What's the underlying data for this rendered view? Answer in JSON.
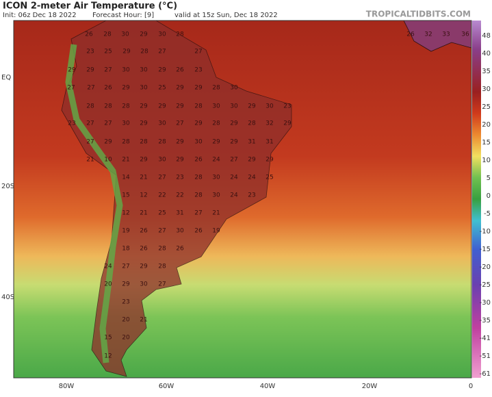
{
  "header": {
    "title": "ICON 2-meter Air Temperature (°C)",
    "init": "Init: 06z Dec 18 2022",
    "forecast_hour": "Forecast Hour: [9]",
    "valid": "valid at 15z Sun, Dec 18 2022",
    "watermark": "TROPICALTIDBITS.COM"
  },
  "axes": {
    "lat_labels": [
      "EQ",
      "20S",
      "40S"
    ],
    "lon_labels": [
      "80W",
      "60W",
      "40W",
      "20W",
      "0"
    ]
  },
  "colorbar": {
    "labels": [
      48,
      40,
      35,
      30,
      25,
      20,
      15,
      10,
      5,
      0,
      -5,
      -10,
      -15,
      -20,
      -25,
      -30,
      -35,
      -41,
      -51,
      -61
    ]
  },
  "map": {
    "labels": [
      26,
      28,
      30,
      29,
      30,
      28,
      23,
      25,
      29,
      28,
      27,
      27,
      29,
      29,
      27,
      30,
      30,
      29,
      26,
      23,
      27,
      27,
      26,
      29,
      30,
      25,
      29,
      29,
      28,
      30,
      28,
      28,
      28,
      29,
      29,
      29,
      28,
      30,
      30,
      29,
      30,
      23,
      23,
      27,
      27,
      30,
      29,
      30,
      27,
      29,
      28,
      29,
      28,
      32,
      29,
      27,
      29,
      28,
      28,
      28,
      29,
      30,
      29,
      29,
      31,
      31,
      21,
      10,
      21,
      29,
      30,
      29,
      26,
      24,
      27,
      29,
      29,
      14,
      21,
      27,
      23,
      28,
      30,
      24,
      24,
      25,
      15,
      12,
      22,
      22,
      28,
      30,
      24,
      23,
      12,
      21,
      25,
      31,
      27,
      21,
      19,
      26,
      27,
      30,
      26,
      19,
      18,
      26,
      28,
      26,
      24,
      27,
      29,
      28,
      20,
      29,
      30,
      27,
      23,
      20,
      21,
      15,
      20,
      12,
      26,
      32,
      33,
      36
    ]
  }
}
